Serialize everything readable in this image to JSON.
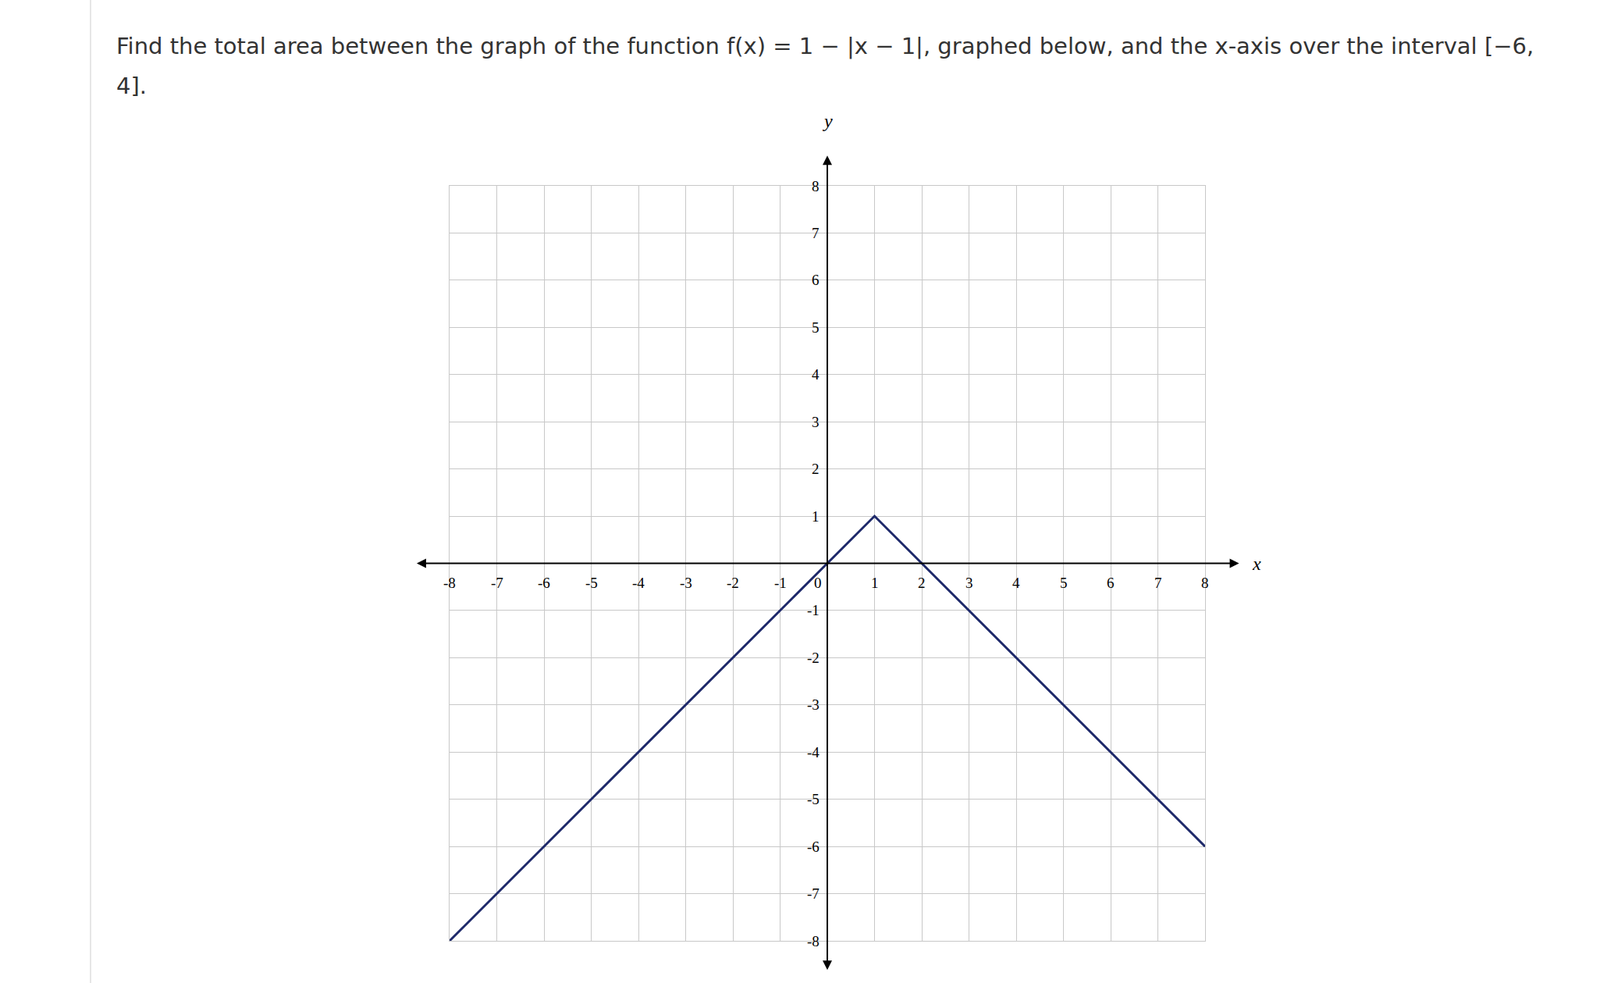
{
  "question": "Find the total area between the graph of the function f(x) = 1 − |x − 1|, graphed below, and the x-axis over the interval [−6, 4].",
  "chart_data": {
    "type": "line",
    "x": [
      -8,
      1,
      8
    ],
    "values": [
      -8,
      1,
      -6
    ],
    "color": "#1f2a6b",
    "xlabel": "x",
    "ylabel": "y",
    "xlim": [
      -8,
      8
    ],
    "ylim": [
      -8,
      8
    ],
    "xticks": [
      -8,
      -7,
      -6,
      -5,
      -4,
      -3,
      -2,
      -1,
      0,
      1,
      2,
      3,
      4,
      5,
      6,
      7,
      8
    ],
    "yticks": [
      -8,
      -7,
      -6,
      -5,
      -4,
      -3,
      -2,
      -1,
      1,
      2,
      3,
      4,
      5,
      6,
      7,
      8
    ],
    "grid": true
  }
}
